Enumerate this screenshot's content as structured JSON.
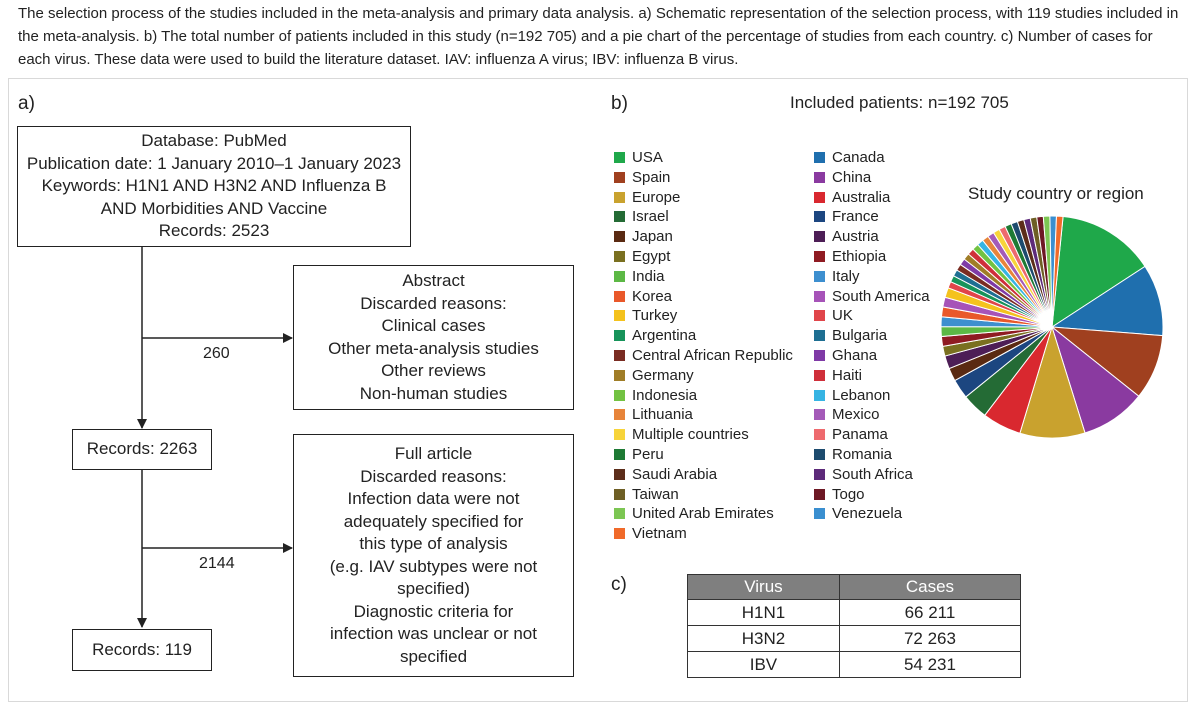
{
  "caption": "The selection process of the studies included in the meta-analysis and primary data analysis. a) Schematic representation of the selection process, with 119 studies included in the meta-analysis. b) The total number of patients included in this study (n=192 705) and a pie chart of the percentage of studies from each country. c) Number of cases for each virus. These data were used to build the literature dataset. IAV: influenza A virus; IBV: influenza B virus.",
  "panel_a": {
    "label": "a)",
    "database_box": {
      "lines": [
        "Database: PubMed",
        "Publication date: 1 January 2010–1 January 2023",
        "Keywords: H1N1 AND H3N2 AND Influenza B",
        "AND Morbidities AND Vaccine",
        "Records: 2523"
      ]
    },
    "abstract_box": {
      "lines": [
        "Abstract",
        "Discarded reasons:",
        "Clinical cases",
        "Other meta-analysis studies",
        "Other reviews",
        "Non-human studies"
      ]
    },
    "abstract_count": "260",
    "records_2263": "Records: 2263",
    "fullarticle_box": {
      "lines": [
        "Full article",
        "Discarded reasons:",
        "Infection data were not",
        "adequately specified for",
        "this type of analysis",
        "(e.g. IAV subtypes were not",
        "specified)",
        "Diagnostic criteria for",
        "infection was unclear or not",
        "specified"
      ]
    },
    "fullarticle_count": "2144",
    "records_119": "Records: 119"
  },
  "panel_b": {
    "label": "b)",
    "included_patients": "Included patients: n=192 705",
    "legend_left": [
      {
        "name": "USA",
        "color": "#1fa84a"
      },
      {
        "name": "Spain",
        "color": "#a0401f"
      },
      {
        "name": "Europe",
        "color": "#c9a22e"
      },
      {
        "name": "Israel",
        "color": "#246b35"
      },
      {
        "name": "Japan",
        "color": "#5a2a12"
      },
      {
        "name": "Egypt",
        "color": "#7a7020"
      },
      {
        "name": "India",
        "color": "#5cb845"
      },
      {
        "name": "Korea",
        "color": "#e9582a"
      },
      {
        "name": "Turkey",
        "color": "#f4c21d"
      },
      {
        "name": "Argentina",
        "color": "#17935a"
      },
      {
        "name": "Central African Republic",
        "color": "#7a2c22"
      },
      {
        "name": "Germany",
        "color": "#a07d27"
      },
      {
        "name": "Indonesia",
        "color": "#72c242"
      },
      {
        "name": "Lithuania",
        "color": "#e7843a"
      },
      {
        "name": "Multiple countries",
        "color": "#f7d43a"
      },
      {
        "name": "Peru",
        "color": "#1e7a34"
      },
      {
        "name": "Saudi Arabia",
        "color": "#5c2d1a"
      },
      {
        "name": "Taiwan",
        "color": "#6e5f25"
      },
      {
        "name": "United Arab Emirates",
        "color": "#7cc653"
      },
      {
        "name": "Vietnam",
        "color": "#f06a2a"
      }
    ],
    "legend_right": [
      {
        "name": "Canada",
        "color": "#1f6fae"
      },
      {
        "name": "China",
        "color": "#8a3aa0"
      },
      {
        "name": "Australia",
        "color": "#d9282f"
      },
      {
        "name": "France",
        "color": "#1c4680"
      },
      {
        "name": "Austria",
        "color": "#4d1e56"
      },
      {
        "name": "Ethiopia",
        "color": "#8f1b22"
      },
      {
        "name": "Italy",
        "color": "#3d8fcf"
      },
      {
        "name": "South America",
        "color": "#a653b8"
      },
      {
        "name": "UK",
        "color": "#e0454a"
      },
      {
        "name": "Bulgaria",
        "color": "#1e6f92"
      },
      {
        "name": "Ghana",
        "color": "#7f3aa6"
      },
      {
        "name": "Haiti",
        "color": "#cf2f3a"
      },
      {
        "name": "Lebanon",
        "color": "#36b4e3"
      },
      {
        "name": "Mexico",
        "color": "#a45ab8"
      },
      {
        "name": "Panama",
        "color": "#ee6a6e"
      },
      {
        "name": "Romania",
        "color": "#1d4b6e"
      },
      {
        "name": "South Africa",
        "color": "#5d2a7a"
      },
      {
        "name": "Togo",
        "color": "#6d1824"
      },
      {
        "name": "Venezuela",
        "color": "#3a8fd0"
      }
    ]
  },
  "chart_data": {
    "type": "pie",
    "title": "Study country or region",
    "unit": "percentage of studies (estimated)",
    "slices": [
      {
        "name": "USA",
        "value": 15,
        "color": "#1fa84a"
      },
      {
        "name": "Canada",
        "value": 11,
        "color": "#1f6fae"
      },
      {
        "name": "Spain",
        "value": 10,
        "color": "#a0401f"
      },
      {
        "name": "China",
        "value": 10,
        "color": "#8a3aa0"
      },
      {
        "name": "Europe",
        "value": 10,
        "color": "#c9a22e"
      },
      {
        "name": "Australia",
        "value": 6,
        "color": "#d9282f"
      },
      {
        "name": "Israel",
        "value": 4,
        "color": "#246b35"
      },
      {
        "name": "France",
        "value": 3,
        "color": "#1c4680"
      },
      {
        "name": "Japan",
        "value": 2,
        "color": "#5a2a12"
      },
      {
        "name": "Austria",
        "value": 2,
        "color": "#4d1e56"
      },
      {
        "name": "Egypt",
        "value": 1.5,
        "color": "#7a7020"
      },
      {
        "name": "Ethiopia",
        "value": 1.5,
        "color": "#8f1b22"
      },
      {
        "name": "India",
        "value": 1.5,
        "color": "#5cb845"
      },
      {
        "name": "Italy",
        "value": 1.5,
        "color": "#3d8fcf"
      },
      {
        "name": "Korea",
        "value": 1.5,
        "color": "#e9582a"
      },
      {
        "name": "South America",
        "value": 1.5,
        "color": "#a653b8"
      },
      {
        "name": "Turkey",
        "value": 1.5,
        "color": "#f4c21d"
      },
      {
        "name": "UK",
        "value": 1,
        "color": "#e0454a"
      },
      {
        "name": "Argentina",
        "value": 1,
        "color": "#17935a"
      },
      {
        "name": "Bulgaria",
        "value": 1,
        "color": "#1e6f92"
      },
      {
        "name": "Central African Republic",
        "value": 1,
        "color": "#7a2c22"
      },
      {
        "name": "Ghana",
        "value": 1,
        "color": "#7f3aa6"
      },
      {
        "name": "Germany",
        "value": 1,
        "color": "#a07d27"
      },
      {
        "name": "Haiti",
        "value": 1,
        "color": "#cf2f3a"
      },
      {
        "name": "Indonesia",
        "value": 1,
        "color": "#72c242"
      },
      {
        "name": "Lebanon",
        "value": 1,
        "color": "#36b4e3"
      },
      {
        "name": "Lithuania",
        "value": 1,
        "color": "#e7843a"
      },
      {
        "name": "Mexico",
        "value": 1,
        "color": "#a45ab8"
      },
      {
        "name": "Multiple countries",
        "value": 1,
        "color": "#f7d43a"
      },
      {
        "name": "Panama",
        "value": 1,
        "color": "#ee6a6e"
      },
      {
        "name": "Peru",
        "value": 1,
        "color": "#1e7a34"
      },
      {
        "name": "Romania",
        "value": 1,
        "color": "#1d4b6e"
      },
      {
        "name": "Saudi Arabia",
        "value": 1,
        "color": "#5c2d1a"
      },
      {
        "name": "South Africa",
        "value": 1,
        "color": "#5d2a7a"
      },
      {
        "name": "Taiwan",
        "value": 1,
        "color": "#6e5f25"
      },
      {
        "name": "Togo",
        "value": 1,
        "color": "#6d1824"
      },
      {
        "name": "United Arab Emirates",
        "value": 1,
        "color": "#7cc653"
      },
      {
        "name": "Venezuela",
        "value": 1,
        "color": "#3a8fd0"
      },
      {
        "name": "Vietnam",
        "value": 1,
        "color": "#f06a2a"
      }
    ]
  },
  "panel_c": {
    "label": "c)",
    "columns": [
      "Virus",
      "Cases"
    ],
    "rows": [
      {
        "virus": "H1N1",
        "cases": "66 211"
      },
      {
        "virus": "H3N2",
        "cases": "72 263"
      },
      {
        "virus": "IBV",
        "cases": "54 231"
      }
    ]
  }
}
